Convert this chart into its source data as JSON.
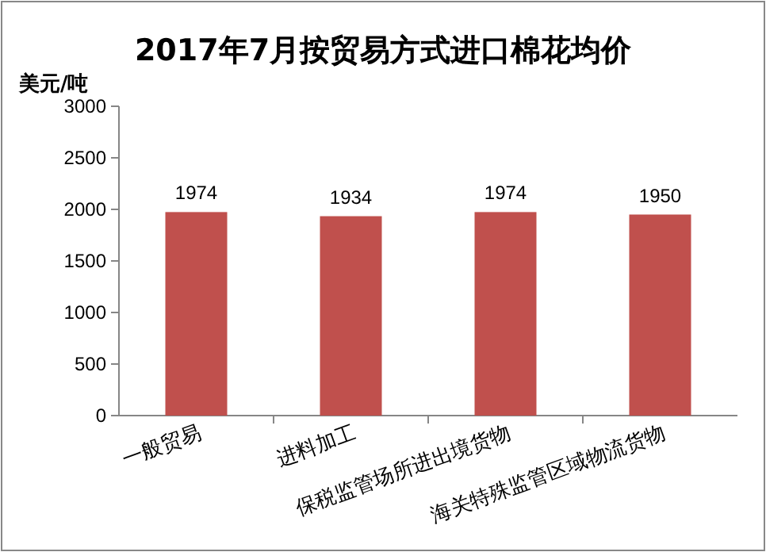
{
  "chart_data": {
    "type": "bar",
    "title": "2017年7月按贸易方式进口棉花均价",
    "ylabel": "美元/吨",
    "categories": [
      "一般贸易",
      "进料加工",
      "保税监管场所进出境货物",
      "海关特殊监管区域物流货物"
    ],
    "values": [
      1974,
      1934,
      1974,
      1950
    ],
    "color": "#c0504d",
    "ylim": [
      0,
      3000
    ],
    "yticks": [
      0,
      500,
      1000,
      1500,
      2000,
      2500,
      3000
    ],
    "data_labels": true
  }
}
